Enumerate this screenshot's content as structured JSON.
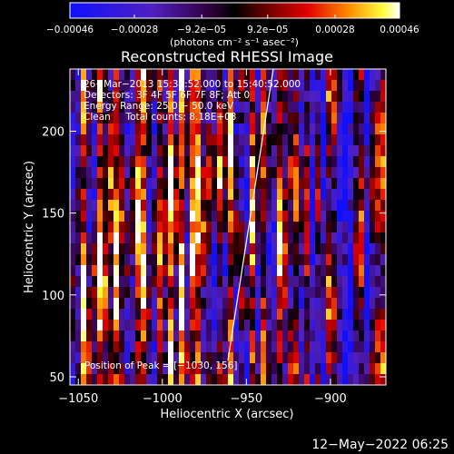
{
  "chart_data": {
    "type": "heatmap",
    "title": "Reconstructed RHESSI Image",
    "xlabel": "Heliocentric X (arcsec)",
    "ylabel": "Heliocentric Y (arcsec)",
    "xlim": [
      -1055,
      -867
    ],
    "ylim": [
      45,
      238
    ],
    "x_ticks": [
      {
        "v": -1050,
        "label": "−1050"
      },
      {
        "v": -1000,
        "label": "−1000"
      },
      {
        "v": -950,
        "label": "−950"
      },
      {
        "v": -900,
        "label": "−900"
      }
    ],
    "y_ticks": [
      {
        "v": 50,
        "label": "50"
      },
      {
        "v": 100,
        "label": "100"
      },
      {
        "v": 150,
        "label": "150"
      },
      {
        "v": 200,
        "label": "200"
      }
    ],
    "colorbar": {
      "min": -0.00046,
      "max": 0.00046,
      "ticks": [
        {
          "v": -0.00046,
          "label": "−0.00046"
        },
        {
          "v": -0.00028,
          "label": "−0.00028"
        },
        {
          "v": -9.2e-05,
          "label": "−9.2e−05"
        },
        {
          "v": 9.2e-05,
          "label": "9.2e−05"
        },
        {
          "v": 0.00028,
          "label": "0.00028"
        },
        {
          "v": 0.00046,
          "label": "0.00046"
        }
      ],
      "unit_label": "(photons cm⁻² s⁻¹ asec⁻²)"
    },
    "annotations": [
      "26−Mar−2013 15:34:52.000 to 15:40:52.000",
      "Detectors: 3F 4F 5F 6F 7F 8F; Att 0",
      "Energy Range: 25.0 − 50.0 keV",
      "Clean     Total counts: 8.18E+03"
    ],
    "peak_label": "Position of Peak = [−1030, 156]",
    "limb_line": [
      [
        -961,
        60
      ],
      [
        -934,
        238
      ]
    ]
  },
  "timestamp": "12−May−2022 06:25"
}
